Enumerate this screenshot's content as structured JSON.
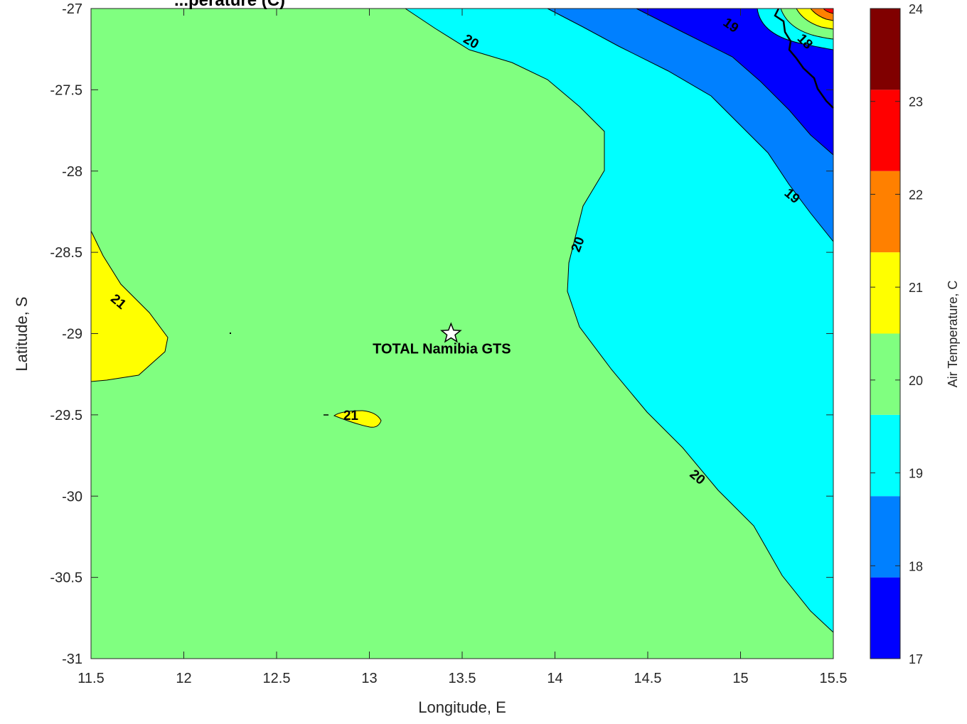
{
  "chart_data": {
    "type": "contour",
    "title": "...perature (C)",
    "xlabel": "Longitude, E",
    "ylabel": "Latitude, S",
    "xlim": [
      11.5,
      15.5
    ],
    "ylim": [
      -31,
      -27
    ],
    "x_ticks": [
      "11.5",
      "12",
      "12.5",
      "13",
      "13.5",
      "14",
      "14.5",
      "15",
      "15.5"
    ],
    "y_ticks": [
      "-27",
      "-27.5",
      "-28",
      "-28.5",
      "-29",
      "-29.5",
      "-30",
      "-30.5",
      "-31"
    ],
    "colorbar": {
      "label": "Air Temperature, C",
      "range": [
        17,
        24
      ],
      "tick_labels": [
        "24",
        "23",
        "22",
        "21",
        "20",
        "19",
        "18",
        "17"
      ],
      "colors": [
        "#0000ff",
        "#0080ff",
        "#00ffff",
        "#80ff80",
        "#ffff00",
        "#ff8000",
        "#ff0000",
        "#800000"
      ]
    },
    "contour_levels": [
      17.5,
      18.5,
      19.5,
      20.5,
      21.5,
      22.5,
      23.5
    ],
    "contour_labels": [
      {
        "text": "20",
        "lon": 13.55,
        "lat": -27.2,
        "rotate": 30
      },
      {
        "text": "19",
        "lon": 14.95,
        "lat": -27.1,
        "rotate": 35
      },
      {
        "text": "18",
        "lon": 15.35,
        "lat": -27.2,
        "rotate": 45
      },
      {
        "text": "18",
        "lon": 15.75,
        "lat": -27.3,
        "rotate": 45
      },
      {
        "text": "19",
        "lon": 15.28,
        "lat": -28.15,
        "rotate": 40
      },
      {
        "text": "20",
        "lon": 14.12,
        "lat": -28.45,
        "rotate": -70
      },
      {
        "text": "21",
        "lon": 11.65,
        "lat": -28.8,
        "rotate": 40
      },
      {
        "text": "21",
        "lon": 12.9,
        "lat": -29.5,
        "rotate": 0
      },
      {
        "text": "20",
        "lon": 14.77,
        "lat": -29.88,
        "rotate": 40
      }
    ],
    "site": {
      "name": "TOTAL Namibia GTS",
      "lon": 13.44,
      "lat": -29.0
    }
  }
}
